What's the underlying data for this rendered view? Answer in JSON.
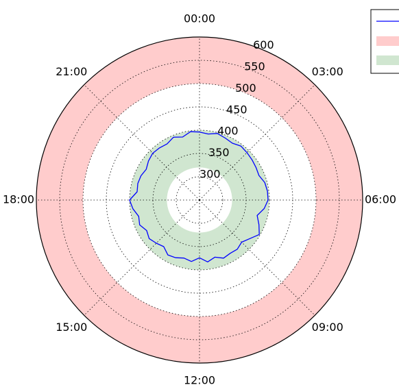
{
  "chart_data": {
    "type": "polar-line",
    "title": "",
    "theta_labels": [
      "00:00",
      "03:00",
      "06:00",
      "09:00",
      "12:00",
      "15:00",
      "18:00",
      "21:00"
    ],
    "theta_direction": "clockwise",
    "theta_zero": "top",
    "r_range": [
      250,
      600
    ],
    "r_ticks": [
      300,
      350,
      400,
      450,
      500,
      550,
      600
    ],
    "grid": true,
    "bands": [
      {
        "from": 500,
        "to": 600,
        "color": "#ffcccc"
      },
      {
        "from": 320,
        "to": 400,
        "color": "#d0e6d0"
      }
    ],
    "series": [
      {
        "color": "#0000ff",
        "hours": [
          0.0,
          0.5,
          1.0,
          1.5,
          2.0,
          2.5,
          3.0,
          3.5,
          4.0,
          4.5,
          5.0,
          5.5,
          6.0,
          6.5,
          7.0,
          7.5,
          8.0,
          8.5,
          9.0,
          9.5,
          10.0,
          10.5,
          11.0,
          11.5,
          12.0,
          12.5,
          13.0,
          13.5,
          14.0,
          14.5,
          15.0,
          15.5,
          16.0,
          16.5,
          17.0,
          17.5,
          18.0,
          18.5,
          19.0,
          19.5,
          20.0,
          20.5,
          21.0,
          21.5,
          22.0,
          22.5,
          23.0,
          23.5
        ],
        "values": [
          396,
          393,
          398,
          394,
          391,
          396,
          394,
          392,
          390,
          388,
          395,
          397,
          397,
          390,
          378,
          388,
          398,
          386,
          378,
          383,
          382,
          385,
          377,
          384,
          374,
          383,
          379,
          384,
          386,
          376,
          381,
          386,
          381,
          389,
          385,
          394,
          400,
          385,
          387,
          386,
          382,
          388,
          392,
          391,
          389,
          396,
          390,
          398
        ]
      }
    ],
    "legend": {
      "position": "top-right",
      "entries": [
        "",
        "",
        ""
      ]
    }
  }
}
